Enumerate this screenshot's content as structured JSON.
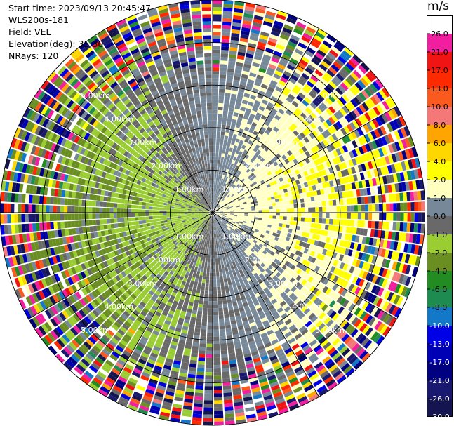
{
  "header": {
    "start_time": "Start time: 2023/09/13 20:45:47",
    "instrument": "WLS200s-181",
    "field": "Field: VEL",
    "elevation": "Elevation(deg): 35.30",
    "nrays": "NRays: 120"
  },
  "chart_data": {
    "type": "heatmap",
    "projection": "polar-ppi",
    "title": "",
    "max_range_km": 5.0,
    "nrays": 120,
    "range_rings_km": [
      1.0,
      2.0,
      3.0,
      4.0,
      5.0
    ],
    "range_ring_labels": [
      "1.00km",
      "2.00km",
      "3.00km",
      "4.00km",
      "5.00km"
    ],
    "spoke_angles_deg": [
      0,
      30,
      60,
      90,
      120,
      150,
      180,
      210,
      240,
      270,
      300,
      330
    ],
    "colorbar": {
      "unit": "m/s",
      "tick_labels": [
        "26.0",
        "21.0",
        "17.0",
        "13.0",
        "10.0",
        "8.0",
        "6.0",
        "4.0",
        "2.0",
        "1.0",
        "0.0",
        "-1.0",
        "-2.0",
        "-4.0",
        "-6.0",
        "-8.0",
        "-10.0",
        "-13.0",
        "-17.0",
        "-21.0",
        "-26.0",
        "-30.0"
      ],
      "colors": [
        "#ffffff",
        "#f21ea0",
        "#f01414",
        "#ff2a00",
        "#fa5a1e",
        "#f57878",
        "#ffa500",
        "#ffd700",
        "#ffff00",
        "#ffffc0",
        "#778899",
        "#696969",
        "#9acd32",
        "#6b8e23",
        "#228b22",
        "#1e8c50",
        "#1478c8",
        "#0000e6",
        "#0000b4",
        "#000080",
        "#191970",
        "#141450"
      ]
    },
    "sectors": [
      {
        "region": "near-east",
        "range_km": [
          0.0,
          2.5
        ],
        "velocity_ms": [
          0.0,
          2.0
        ]
      },
      {
        "region": "near-west",
        "range_km": [
          0.0,
          2.5
        ],
        "velocity_ms": [
          -6.0,
          -1.0
        ]
      },
      {
        "region": "far-field",
        "range_km": [
          3.5,
          5.0
        ],
        "velocity_ms": [
          -30.0,
          26.0
        ]
      }
    ]
  }
}
